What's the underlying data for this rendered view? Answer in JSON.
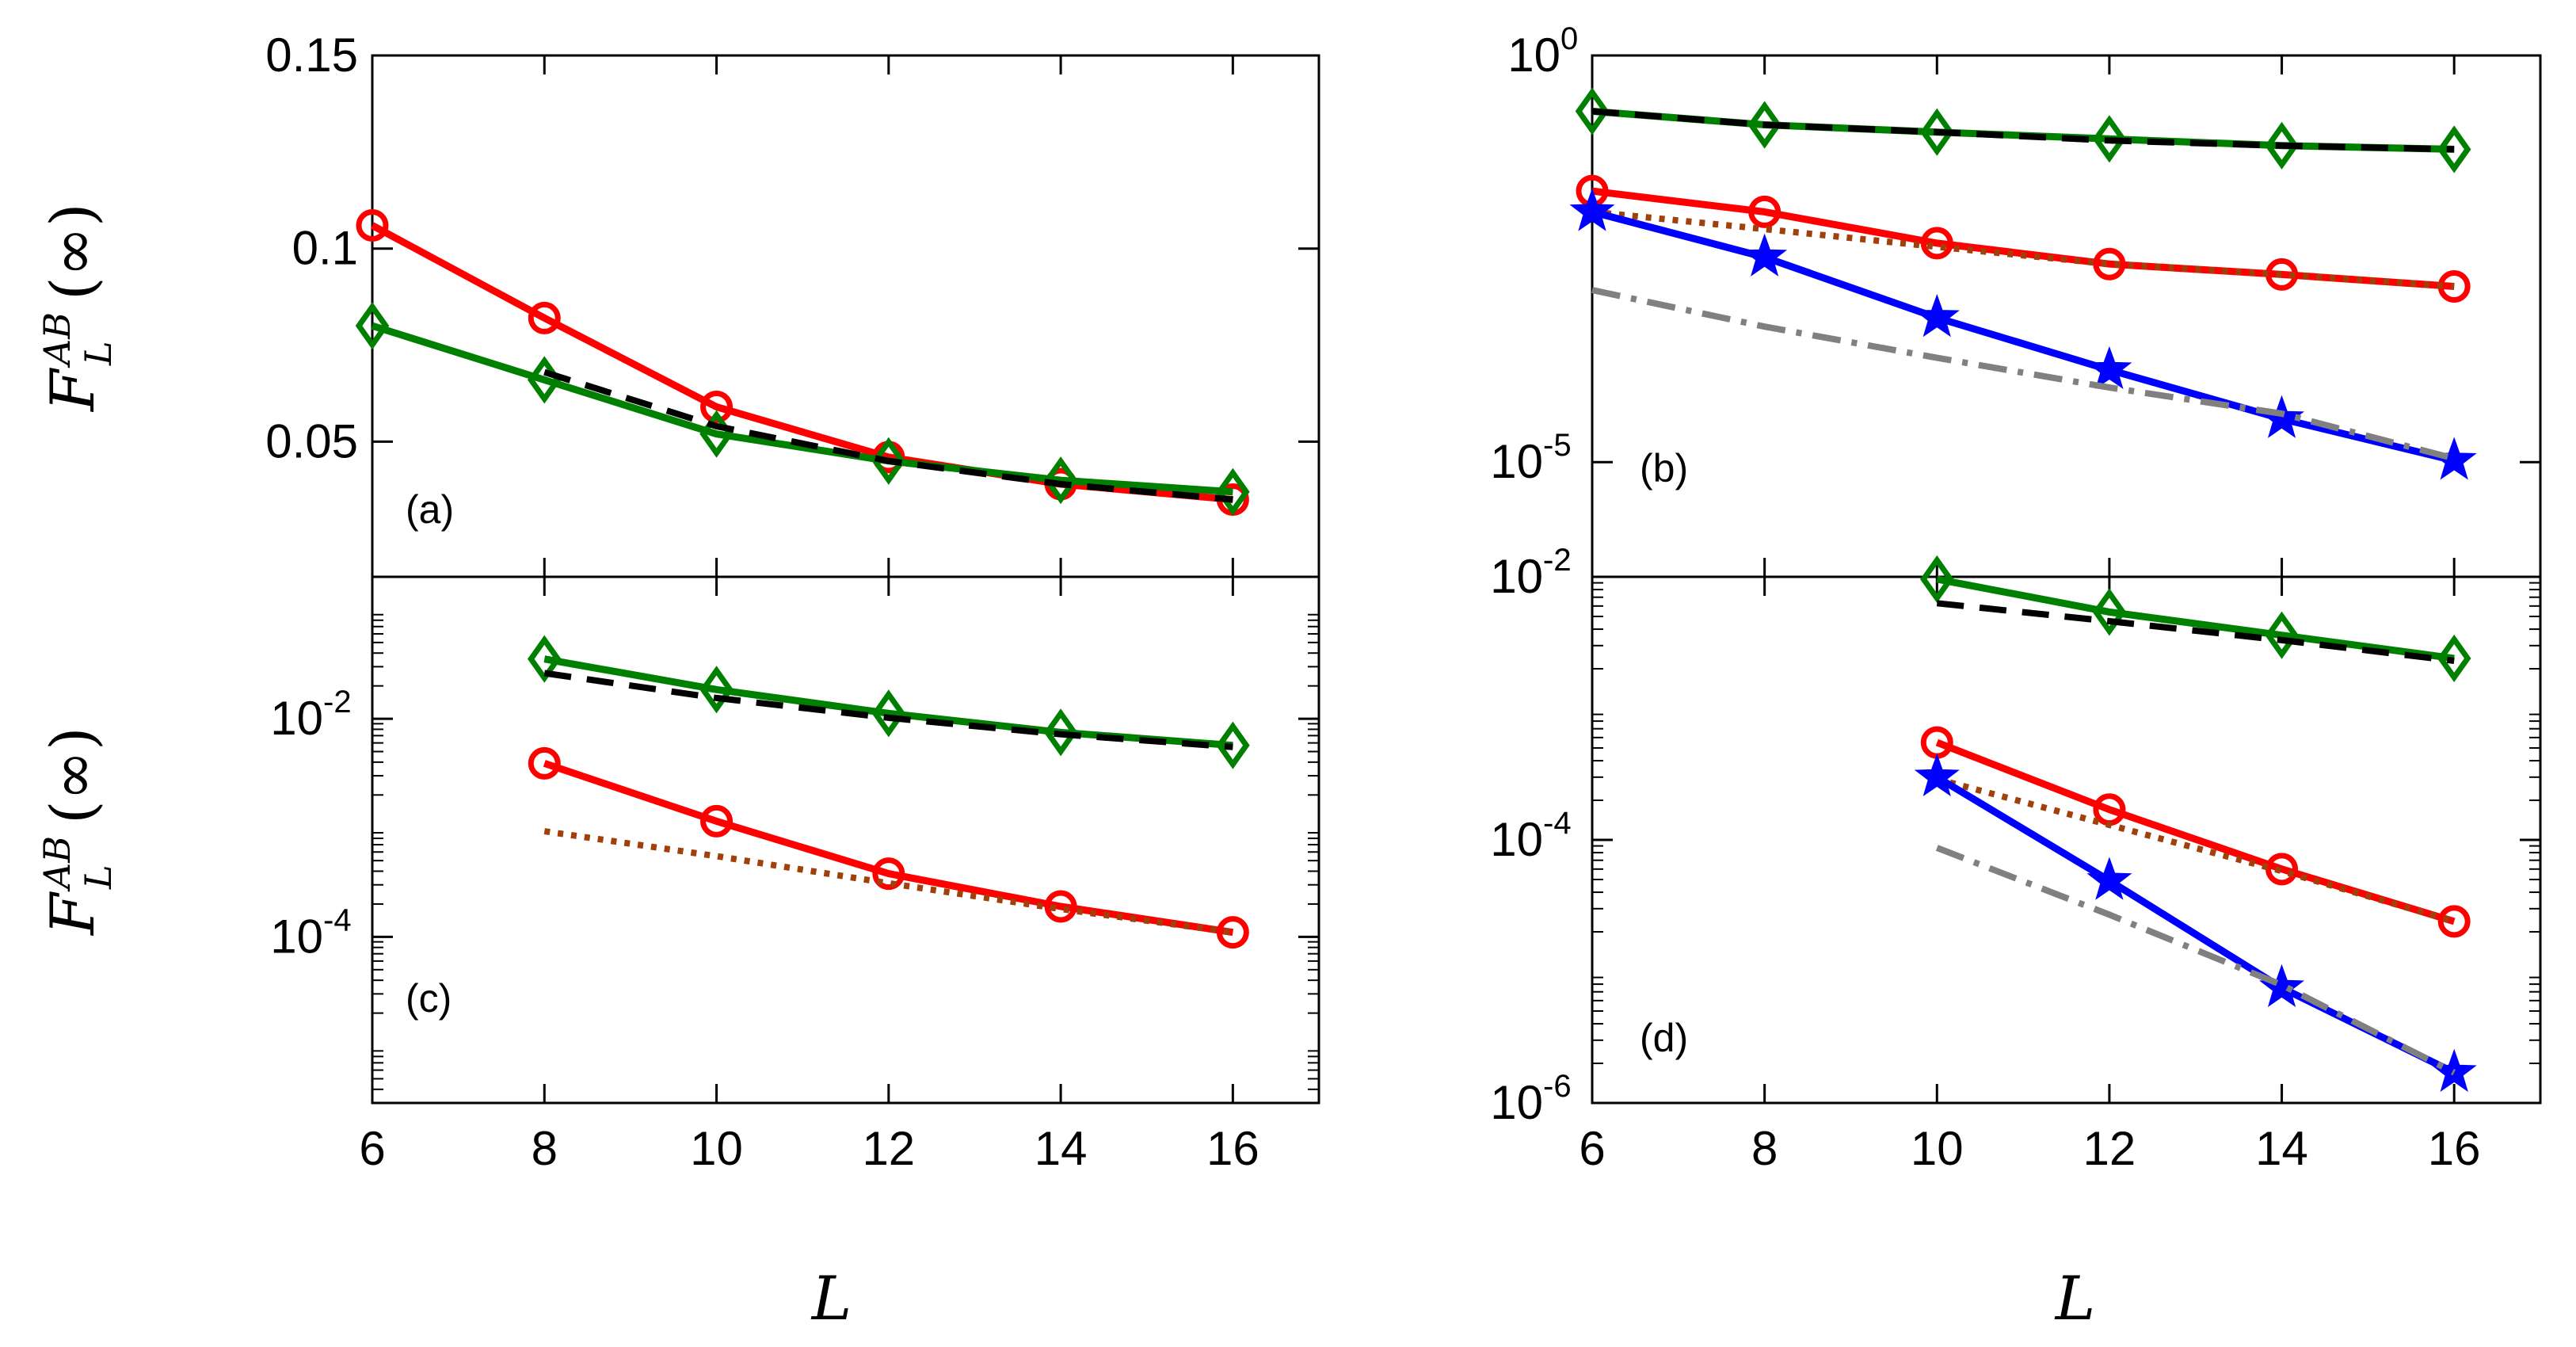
{
  "chart_data": [
    {
      "panel": "(a)",
      "type": "line",
      "scale": "linear",
      "xlim": [
        6,
        17
      ],
      "ylim": [
        0.015,
        0.15
      ],
      "yticks": [
        {
          "v": 0.05,
          "label": "0.05"
        },
        {
          "v": 0.1,
          "label": "0.1"
        },
        {
          "v": 0.15,
          "label": "0.15"
        }
      ],
      "series": [
        {
          "color": "#ff0000",
          "marker": "circle",
          "style": "solid",
          "x": [
            6,
            8,
            10,
            12,
            14,
            16
          ],
          "y": [
            0.106,
            0.082,
            0.059,
            0.046,
            0.039,
            0.035
          ]
        },
        {
          "color": "#008000",
          "marker": "diamond",
          "style": "solid",
          "x": [
            6,
            8,
            10,
            12,
            14,
            16
          ],
          "y": [
            0.08,
            0.066,
            0.052,
            0.045,
            0.04,
            0.037
          ]
        },
        {
          "color": "#000000",
          "marker": "none",
          "style": "dashed",
          "x": [
            8,
            10,
            12,
            14,
            16
          ],
          "y": [
            0.068,
            0.054,
            0.045,
            0.039,
            0.035
          ]
        }
      ]
    },
    {
      "panel": "(b)",
      "type": "line",
      "scale": "linear",
      "xlim": [
        6,
        17
      ],
      "ylim": [
        0,
        0.1
      ],
      "yticks": [
        {
          "v": 0.0,
          "label": "10",
          "exp": "-2"
        },
        {
          "v": 0.022,
          "label": "10",
          "exp": "-5"
        },
        {
          "v": 0.1,
          "label": "10",
          "exp": "0"
        }
      ],
      "series": [
        {
          "color": "#008000",
          "marker": "diamond",
          "style": "solid",
          "x": [
            6,
            8,
            10,
            12,
            14,
            16
          ],
          "y": [
            0.0893,
            0.0867,
            0.0853,
            0.084,
            0.0827,
            0.082
          ]
        },
        {
          "color": "#000000",
          "marker": "none",
          "style": "dashed",
          "x": [
            6,
            8,
            10,
            12,
            14,
            16
          ],
          "y": [
            0.0893,
            0.0867,
            0.0853,
            0.0837,
            0.0827,
            0.082
          ]
        },
        {
          "color": "#ff0000",
          "marker": "circle",
          "style": "solid",
          "x": [
            6,
            8,
            10,
            12,
            14,
            16
          ],
          "y": [
            0.074,
            0.07,
            0.064,
            0.06,
            0.058,
            0.0557
          ]
        },
        {
          "color": "#a0400a",
          "marker": "none",
          "style": "dotted",
          "x": [
            6,
            8,
            10,
            12,
            14,
            16
          ],
          "y": [
            0.07,
            0.0667,
            0.0633,
            0.06,
            0.058,
            0.0557
          ]
        },
        {
          "color": "#0000ff",
          "marker": "star",
          "style": "solid",
          "x": [
            6,
            8,
            10,
            12,
            14,
            16
          ],
          "y": [
            0.07,
            0.0613,
            0.0497,
            0.0397,
            0.0303,
            0.0223
          ]
        },
        {
          "color": "#808080",
          "marker": "none",
          "style": "dashdot",
          "x": [
            6,
            8,
            10,
            12,
            14,
            16
          ],
          "y": [
            0.055,
            0.048,
            0.042,
            0.0363,
            0.0313,
            0.0227
          ]
        }
      ]
    },
    {
      "panel": "(c)",
      "type": "line",
      "scale": "log",
      "xlim": [
        6,
        17
      ],
      "ylim": [
        3e-06,
        0.2
      ],
      "yticks": [
        {
          "v": 0.0001,
          "label": "10",
          "exp": "-4"
        },
        {
          "v": 0.01,
          "label": "10",
          "exp": "-2"
        }
      ],
      "series": [
        {
          "color": "#008000",
          "marker": "diamond",
          "style": "solid",
          "x": [
            8,
            10,
            12,
            14,
            16
          ],
          "y": [
            0.0353,
            0.0185,
            0.0112,
            0.0075,
            0.0057
          ]
        },
        {
          "color": "#000000",
          "marker": "none",
          "style": "dashed",
          "x": [
            8,
            10,
            12,
            14,
            16
          ],
          "y": [
            0.0262,
            0.0155,
            0.0102,
            0.0072,
            0.0055
          ]
        },
        {
          "color": "#ff0000",
          "marker": "circle",
          "style": "solid",
          "x": [
            8,
            10,
            12,
            14,
            16
          ],
          "y": [
            0.0039,
            0.00115,
            0.00038,
            0.00019,
            0.00011
          ]
        },
        {
          "color": "#a0400a",
          "marker": "none",
          "style": "dotted",
          "x": [
            8,
            10,
            12,
            14,
            16
          ],
          "y": [
            0.00093,
            0.00055,
            0.00031,
            0.00018,
            0.00011
          ]
        }
      ]
    },
    {
      "panel": "(d)",
      "type": "line",
      "scale": "log",
      "xlim": [
        6,
        17
      ],
      "ylim": [
        1e-06,
        0.01
      ],
      "yticks": [
        {
          "v": 1e-06,
          "label": "10",
          "exp": "-6"
        },
        {
          "v": 0.0001,
          "label": "10",
          "exp": "-4"
        },
        {
          "v": 0.01,
          "label": "10",
          "exp": "-2"
        }
      ],
      "series": [
        {
          "color": "#008000",
          "marker": "diamond",
          "style": "solid",
          "x": [
            10,
            12,
            14,
            16
          ],
          "y": [
            0.0096,
            0.0054,
            0.0036,
            0.0024
          ]
        },
        {
          "color": "#000000",
          "marker": "none",
          "style": "dashed",
          "x": [
            10,
            12,
            14,
            16
          ],
          "y": [
            0.0063,
            0.0046,
            0.0033,
            0.0023
          ]
        },
        {
          "color": "#ff0000",
          "marker": "circle",
          "style": "solid",
          "x": [
            10,
            12,
            14,
            16
          ],
          "y": [
            0.00055,
            0.00017,
            6e-05,
            2.4e-05
          ]
        },
        {
          "color": "#a0400a",
          "marker": "none",
          "style": "dotted",
          "x": [
            10,
            12,
            14,
            16
          ],
          "y": [
            0.00029,
            0.00013,
            5.8e-05,
            2.4e-05
          ]
        },
        {
          "color": "#0000ff",
          "marker": "star",
          "style": "solid",
          "x": [
            10,
            12,
            14,
            16
          ],
          "y": [
            0.0003,
            4.9e-05,
            7.5e-06,
            1.7e-06
          ]
        },
        {
          "color": "#808080",
          "marker": "none",
          "style": "dashdot",
          "x": [
            10,
            12,
            14,
            16
          ],
          "y": [
            8.7e-05,
            2.7e-05,
            7.9e-06,
            1.7e-06
          ]
        }
      ]
    }
  ],
  "xticks": [
    6,
    8,
    10,
    12,
    14,
    16
  ],
  "xlabel": "L",
  "ylabel": {
    "main": "F",
    "sub": "L",
    "sup": "AB",
    "arg": "(∞)"
  }
}
